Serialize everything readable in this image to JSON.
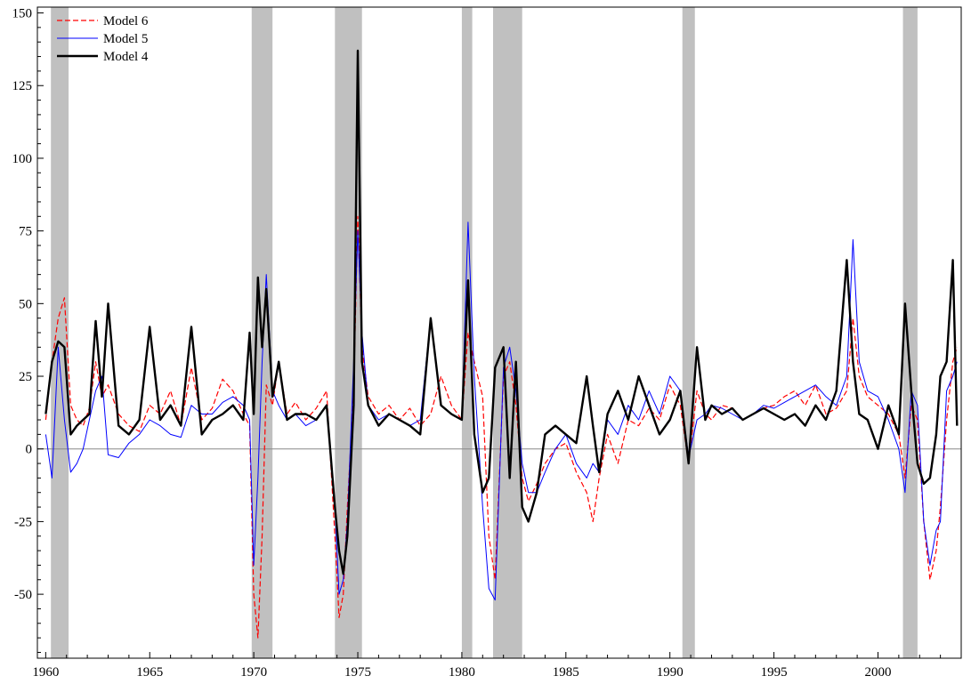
{
  "chart_data": {
    "type": "line",
    "title": "",
    "xlabel": "",
    "ylabel": "",
    "xlim": [
      1959.6,
      2004.0
    ],
    "ylim": [
      -72,
      152
    ],
    "x_ticks": [
      1960,
      1965,
      1970,
      1975,
      1980,
      1985,
      1990,
      1995,
      2000
    ],
    "y_ticks": [
      -50,
      -25,
      0,
      25,
      50,
      75,
      100,
      125,
      150
    ],
    "grid": false,
    "zero_line": true,
    "legend": {
      "placement": "top-left",
      "entries": [
        "Model 6",
        "Model 5",
        "Model 4"
      ]
    },
    "shaded_periods": [
      [
        1960.25,
        1961.1
      ],
      [
        1969.9,
        1970.9
      ],
      [
        1973.9,
        1975.2
      ],
      [
        1980.0,
        1980.5
      ],
      [
        1981.5,
        1982.9
      ],
      [
        1990.6,
        1991.2
      ],
      [
        2001.2,
        2001.9
      ]
    ],
    "series": [
      {
        "name": "Model 6",
        "color": "#ff0000",
        "style": "dashed",
        "x": [
          1960.0,
          1960.3,
          1960.6,
          1960.9,
          1961.2,
          1961.5,
          1961.8,
          1962.1,
          1962.4,
          1962.7,
          1963.0,
          1963.5,
          1964.0,
          1964.5,
          1965.0,
          1965.5,
          1966.0,
          1966.5,
          1967.0,
          1967.5,
          1968.0,
          1968.5,
          1969.0,
          1969.5,
          1969.8,
          1970.0,
          1970.2,
          1970.4,
          1970.6,
          1970.9,
          1971.2,
          1971.6,
          1972.0,
          1972.5,
          1973.0,
          1973.5,
          1973.9,
          1974.1,
          1974.3,
          1974.5,
          1974.8,
          1975.0,
          1975.2,
          1975.5,
          1976.0,
          1976.5,
          1977.0,
          1977.5,
          1978.0,
          1978.5,
          1979.0,
          1979.5,
          1980.0,
          1980.3,
          1980.6,
          1981.0,
          1981.3,
          1981.6,
          1982.0,
          1982.3,
          1982.6,
          1982.9,
          1983.2,
          1983.6,
          1984.0,
          1984.5,
          1985.0,
          1985.5,
          1986.0,
          1986.3,
          1986.6,
          1987.0,
          1987.5,
          1988.0,
          1988.5,
          1989.0,
          1989.5,
          1990.0,
          1990.5,
          1990.9,
          1991.3,
          1991.7,
          1992.0,
          1992.5,
          1993.0,
          1993.5,
          1994.0,
          1994.5,
          1995.0,
          1995.5,
          1996.0,
          1996.5,
          1997.0,
          1997.5,
          1998.0,
          1998.5,
          1998.8,
          1999.1,
          1999.5,
          2000.0,
          2000.5,
          2001.0,
          2001.3,
          2001.6,
          2001.9,
          2002.2,
          2002.5,
          2002.8,
          2003.0,
          2003.3,
          2003.6,
          2003.8
        ],
        "y": [
          10,
          30,
          45,
          52,
          15,
          10,
          8,
          14,
          30,
          18,
          22,
          12,
          8,
          6,
          15,
          12,
          20,
          8,
          28,
          10,
          14,
          24,
          20,
          12,
          8,
          -50,
          -65,
          -30,
          22,
          15,
          30,
          12,
          16,
          10,
          14,
          20,
          -30,
          -58,
          -50,
          -20,
          20,
          80,
          35,
          18,
          12,
          15,
          10,
          14,
          8,
          12,
          25,
          15,
          10,
          40,
          30,
          18,
          -30,
          -45,
          25,
          30,
          15,
          -10,
          -18,
          -12,
          -5,
          0,
          2,
          -8,
          -15,
          -25,
          -10,
          5,
          -5,
          10,
          8,
          14,
          10,
          22,
          15,
          -5,
          20,
          12,
          10,
          15,
          14,
          10,
          12,
          14,
          15,
          18,
          20,
          15,
          22,
          12,
          14,
          20,
          45,
          25,
          18,
          15,
          12,
          5,
          -10,
          15,
          10,
          -25,
          -45,
          -35,
          -20,
          10,
          30,
          35
        ]
      },
      {
        "name": "Model 5",
        "color": "#0000ff",
        "style": "solid",
        "x": [
          1960.0,
          1960.3,
          1960.6,
          1960.9,
          1961.2,
          1961.5,
          1961.8,
          1962.1,
          1962.4,
          1962.7,
          1963.0,
          1963.5,
          1964.0,
          1964.5,
          1965.0,
          1965.5,
          1966.0,
          1966.5,
          1967.0,
          1967.5,
          1968.0,
          1968.5,
          1969.0,
          1969.5,
          1969.8,
          1970.0,
          1970.2,
          1970.4,
          1970.6,
          1970.9,
          1971.2,
          1971.6,
          1972.0,
          1972.5,
          1973.0,
          1973.5,
          1973.9,
          1974.1,
          1974.3,
          1974.5,
          1974.8,
          1975.0,
          1975.2,
          1975.5,
          1976.0,
          1976.5,
          1977.0,
          1977.5,
          1978.0,
          1978.5,
          1979.0,
          1979.5,
          1980.0,
          1980.3,
          1980.6,
          1981.0,
          1981.3,
          1981.6,
          1982.0,
          1982.3,
          1982.6,
          1982.9,
          1983.2,
          1983.6,
          1984.0,
          1984.5,
          1985.0,
          1985.5,
          1986.0,
          1986.3,
          1986.6,
          1987.0,
          1987.5,
          1988.0,
          1988.5,
          1989.0,
          1989.5,
          1990.0,
          1990.5,
          1990.9,
          1991.3,
          1991.7,
          1992.0,
          1992.5,
          1993.0,
          1993.5,
          1994.0,
          1994.5,
          1995.0,
          1995.5,
          1996.0,
          1996.5,
          1997.0,
          1997.5,
          1998.0,
          1998.5,
          1998.8,
          1999.1,
          1999.5,
          2000.0,
          2000.5,
          2001.0,
          2001.3,
          2001.6,
          2001.9,
          2002.2,
          2002.5,
          2002.8,
          2003.0,
          2003.3,
          2003.6,
          2003.8
        ],
        "y": [
          5,
          -10,
          35,
          10,
          -8,
          -5,
          0,
          10,
          20,
          25,
          -2,
          -3,
          2,
          5,
          10,
          8,
          5,
          4,
          15,
          12,
          12,
          16,
          18,
          15,
          10,
          -40,
          -10,
          30,
          60,
          20,
          15,
          10,
          12,
          8,
          10,
          15,
          -20,
          -50,
          -45,
          -25,
          30,
          75,
          40,
          15,
          10,
          12,
          10,
          8,
          10,
          45,
          15,
          12,
          10,
          78,
          25,
          -20,
          -48,
          -52,
          28,
          35,
          20,
          -5,
          -15,
          -15,
          -8,
          0,
          5,
          -5,
          -10,
          -5,
          -8,
          10,
          5,
          15,
          10,
          20,
          12,
          25,
          20,
          -3,
          10,
          12,
          15,
          14,
          12,
          10,
          12,
          15,
          14,
          16,
          18,
          20,
          22,
          18,
          15,
          25,
          72,
          30,
          20,
          18,
          10,
          0,
          -15,
          20,
          15,
          -25,
          -40,
          -28,
          -25,
          20,
          25,
          30
        ]
      },
      {
        "name": "Model 4",
        "color": "#000000",
        "style": "solid",
        "x": [
          1960.0,
          1960.3,
          1960.6,
          1960.9,
          1961.2,
          1961.5,
          1961.8,
          1962.1,
          1962.4,
          1962.7,
          1963.0,
          1963.5,
          1964.0,
          1964.5,
          1965.0,
          1965.5,
          1966.0,
          1966.5,
          1967.0,
          1967.5,
          1968.0,
          1968.5,
          1969.0,
          1969.5,
          1969.8,
          1970.0,
          1970.2,
          1970.4,
          1970.6,
          1970.9,
          1971.2,
          1971.6,
          1972.0,
          1972.5,
          1973.0,
          1973.5,
          1973.9,
          1974.1,
          1974.3,
          1974.5,
          1974.8,
          1975.0,
          1975.2,
          1975.5,
          1976.0,
          1976.5,
          1977.0,
          1977.5,
          1978.0,
          1978.5,
          1979.0,
          1979.5,
          1980.0,
          1980.3,
          1980.6,
          1981.0,
          1981.3,
          1981.6,
          1982.0,
          1982.3,
          1982.6,
          1982.9,
          1983.2,
          1983.6,
          1984.0,
          1984.5,
          1985.0,
          1985.5,
          1986.0,
          1986.3,
          1986.6,
          1987.0,
          1987.5,
          1988.0,
          1988.5,
          1989.0,
          1989.5,
          1990.0,
          1990.5,
          1990.9,
          1991.3,
          1991.7,
          1992.0,
          1992.5,
          1993.0,
          1993.5,
          1994.0,
          1994.5,
          1995.0,
          1995.5,
          1996.0,
          1996.5,
          1997.0,
          1997.5,
          1998.0,
          1998.5,
          1998.8,
          1999.1,
          1999.5,
          2000.0,
          2000.5,
          2001.0,
          2001.3,
          2001.6,
          2001.9,
          2002.2,
          2002.5,
          2002.8,
          2003.0,
          2003.3,
          2003.6,
          2003.8
        ],
        "y": [
          12,
          30,
          37,
          35,
          5,
          8,
          10,
          12,
          44,
          18,
          50,
          8,
          5,
          10,
          42,
          10,
          15,
          8,
          42,
          5,
          10,
          12,
          15,
          10,
          40,
          12,
          59,
          35,
          55,
          18,
          30,
          10,
          12,
          12,
          10,
          15,
          -20,
          -35,
          -43,
          -30,
          15,
          137,
          30,
          15,
          8,
          12,
          10,
          8,
          5,
          45,
          15,
          12,
          10,
          58,
          5,
          -15,
          -10,
          28,
          35,
          -10,
          30,
          -20,
          -25,
          -15,
          5,
          8,
          5,
          2,
          25,
          8,
          -8,
          12,
          20,
          10,
          25,
          15,
          5,
          10,
          20,
          -5,
          35,
          10,
          15,
          12,
          14,
          10,
          12,
          14,
          12,
          10,
          12,
          8,
          15,
          10,
          20,
          65,
          30,
          12,
          10,
          0,
          15,
          5,
          50,
          20,
          -5,
          -12,
          -10,
          5,
          25,
          30,
          65,
          8
        ]
      }
    ]
  }
}
